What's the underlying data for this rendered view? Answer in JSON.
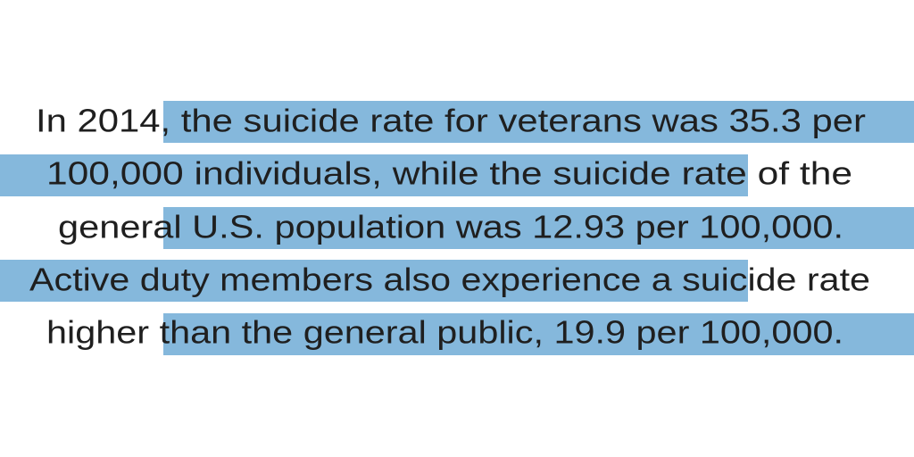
{
  "lines": [
    "In 2014, the suicide rate for veterans was 35.3 per",
    "100,000 individuals, while the suicide rate of the",
    "general U.S. population was 12.93 per 100,000.",
    "Active duty members also experience a suicide rate",
    "higher than the general public, 19.9 per 100,000."
  ]
}
